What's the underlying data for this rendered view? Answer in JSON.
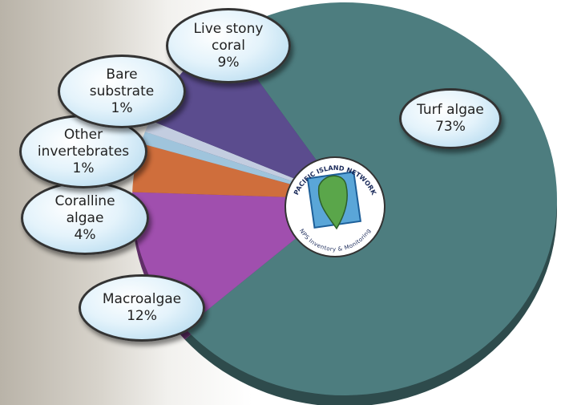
{
  "chart_data": {
    "type": "pie",
    "categories": [
      "Turf algae",
      "Macroalgae",
      "Coralline algae",
      "Other invertebrates",
      "Bare substrate",
      "Live stony coral"
    ],
    "values": [
      73,
      12,
      4,
      1,
      1,
      9
    ],
    "value_labels": [
      "73%",
      "12%",
      "4%",
      "1%",
      "1%",
      "9%"
    ],
    "colors": [
      "#4d7d7f",
      "#a04fae",
      "#cf6e3c",
      "#9fc4dc",
      "#c3cde0",
      "#5b4c8e"
    ],
    "annotations": [
      "PACIFIC ISLAND NETWORK",
      "NPS Inventory & Monitoring"
    ]
  }
}
